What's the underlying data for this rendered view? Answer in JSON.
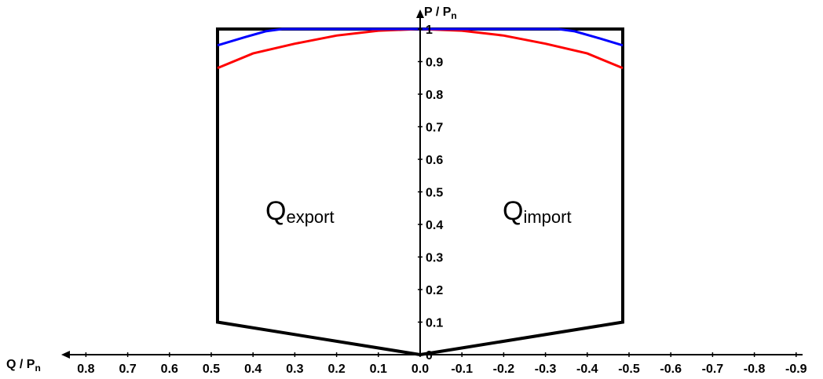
{
  "chart_data": {
    "type": "line",
    "x_axis": {
      "label_main": "Q / P",
      "label_sub": "n",
      "reversed": true,
      "range": [
        0.9,
        -0.9
      ],
      "ticks": [
        0.8,
        0.7,
        0.6,
        0.5,
        0.4,
        0.3,
        0.2,
        0.1,
        0.0,
        -0.1,
        -0.2,
        -0.3,
        -0.4,
        -0.5,
        -0.6,
        -0.7,
        -0.8,
        -0.9
      ],
      "tick_labels": [
        "0.8",
        "0.7",
        "0.6",
        "0.5",
        "0.4",
        "0.3",
        "0.2",
        "0.1",
        "0.0",
        "-0.1",
        "-0.2",
        "-0.3",
        "-0.4",
        "-0.5",
        "-0.6",
        "-0.7",
        "-0.8",
        "-0.9"
      ]
    },
    "y_axis": {
      "label_main": "P / P",
      "label_sub": "n",
      "range": [
        0,
        1
      ],
      "ticks": [
        0,
        0.1,
        0.2,
        0.3,
        0.4,
        0.5,
        0.6,
        0.7,
        0.8,
        0.9,
        1
      ],
      "tick_labels": [
        "0",
        "0.1",
        "0.2",
        "0.3",
        "0.4",
        "0.5",
        "0.6",
        "0.7",
        "0.8",
        "0.9",
        "1"
      ]
    },
    "grid": false,
    "regions": [
      {
        "main": "Q",
        "sub": "export",
        "x": 0.3,
        "y": 0.42
      },
      {
        "main": "Q",
        "sub": "import",
        "x": -0.3,
        "y": 0.42
      }
    ],
    "series": [
      {
        "color": "#000000",
        "x": [
          0,
          0.485,
          0.485,
          -0.485,
          -0.485,
          0
        ],
        "y": [
          0,
          0.1,
          1,
          1,
          0.1,
          0
        ]
      },
      {
        "color": "#ff0000",
        "x": [
          0.485,
          0.4,
          0.3,
          0.2,
          0.1,
          0,
          -0.1,
          -0.2,
          -0.3,
          -0.4,
          -0.485
        ],
        "y": [
          0.88,
          0.925,
          0.955,
          0.98,
          0.995,
          1.0,
          0.995,
          0.98,
          0.955,
          0.925,
          0.88
        ]
      },
      {
        "color": "#0000ff",
        "x": [
          0.485,
          0.42,
          0.37,
          0.33,
          -0.33,
          -0.37,
          -0.42,
          -0.485
        ],
        "y": [
          0.95,
          0.975,
          0.993,
          1.0,
          1.0,
          0.993,
          0.975,
          0.95
        ]
      }
    ]
  }
}
